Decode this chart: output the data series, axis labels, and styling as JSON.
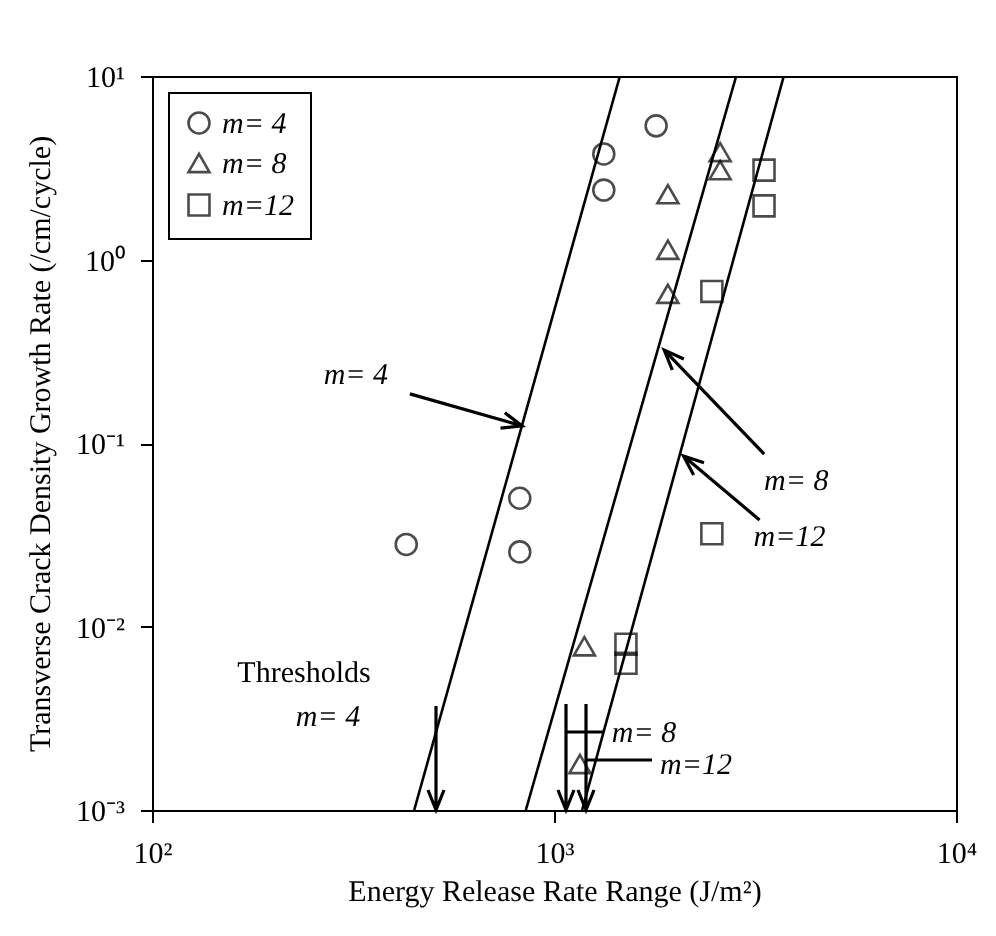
{
  "chart_data": {
    "type": "scatter",
    "xlabel": "Energy Release Rate Range (J/m²)",
    "ylabel": "Transverse Crack Density Growth Rate (/cm/cycle)",
    "log": "xy",
    "grid": false,
    "legend": "top left",
    "xlim": [
      100,
      10000
    ],
    "xticks": [
      {
        "value": 100,
        "label": "10²"
      },
      {
        "value": 1000,
        "label": "10³"
      },
      {
        "value": 10000,
        "label": "10⁴"
      }
    ],
    "ylim": [
      0.001,
      10
    ],
    "yticks": [
      {
        "value": 0.001,
        "label": "10⁻³"
      },
      {
        "value": 0.01,
        "label": "10⁻²"
      },
      {
        "value": 0.1,
        "label": "10⁻¹"
      },
      {
        "value": 1,
        "label": "10⁰"
      },
      {
        "value": 10,
        "label": "10¹"
      }
    ],
    "series": [
      {
        "name": "m= 4",
        "marker": "circle",
        "color": "#000000",
        "x": [
          429,
          822,
          822,
          1330,
          1330,
          1795
        ],
        "values": [
          0.028,
          0.05,
          0.0255,
          3.76,
          2.39,
          5.35
        ]
      },
      {
        "name": "m= 8",
        "marker": "triangle",
        "color": "#000000",
        "x": [
          1160,
          1190,
          1920,
          1920,
          1920,
          2590,
          2590
        ],
        "values": [
          0.00178,
          0.0078,
          2.27,
          1.13,
          0.65,
          3.85,
          3.07
        ]
      },
      {
        "name": "m=12",
        "marker": "square",
        "color": "#000000",
        "x": [
          1510,
          1510,
          2470,
          2470,
          3330,
          3330
        ],
        "values": [
          0.008,
          0.0063,
          0.032,
          0.67,
          3.07,
          1.96
        ]
      },
      {
        "type": "line",
        "color": "#000000",
        "x": [
          449,
          1459
        ],
        "values": [
          0.001,
          10
        ]
      },
      {
        "type": "line",
        "color": "#000000",
        "x": [
          851,
          2840
        ],
        "values": [
          0.001,
          10
        ]
      },
      {
        "type": "line",
        "color": "#000000",
        "x": [
          1175,
          3730
        ],
        "values": [
          0.001,
          10
        ]
      }
    ],
    "annotations": [
      {
        "text": "m= 4",
        "x": 832,
        "y": 0.124
      },
      {
        "text": "m= 8",
        "x": 1880,
        "y": 0.321
      },
      {
        "text": "m=12",
        "x": 2100,
        "y": 0.085
      },
      "Thresholds",
      "m= 4",
      "m= 8",
      "m=12"
    ]
  }
}
